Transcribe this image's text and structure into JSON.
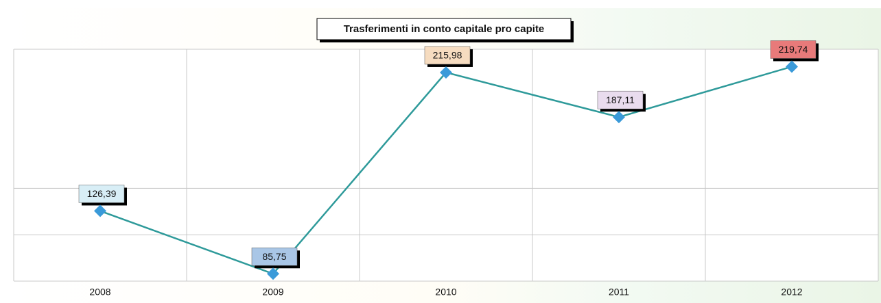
{
  "chart_data": {
    "type": "line",
    "title": "Trasferimenti in conto capitale pro capite",
    "categories": [
      "2008",
      "2009",
      "2010",
      "2011",
      "2012"
    ],
    "series": [
      {
        "color": "#2e9a9a",
        "marker_color": "#3a9ad9",
        "values": [
          126.39,
          85.75,
          215.98,
          187.11,
          219.74
        ],
        "value_labels": [
          "126,39",
          "85,75",
          "215,98",
          "187,11",
          "219,74"
        ],
        "label_colors": [
          "#d8eef6",
          "#a9c6e6",
          "#f6dcc0",
          "#e9dcee",
          "#e87a7a"
        ]
      }
    ],
    "ylim": [
      81,
      231
    ],
    "yticks": [
      111,
      141
    ],
    "grid": true
  }
}
